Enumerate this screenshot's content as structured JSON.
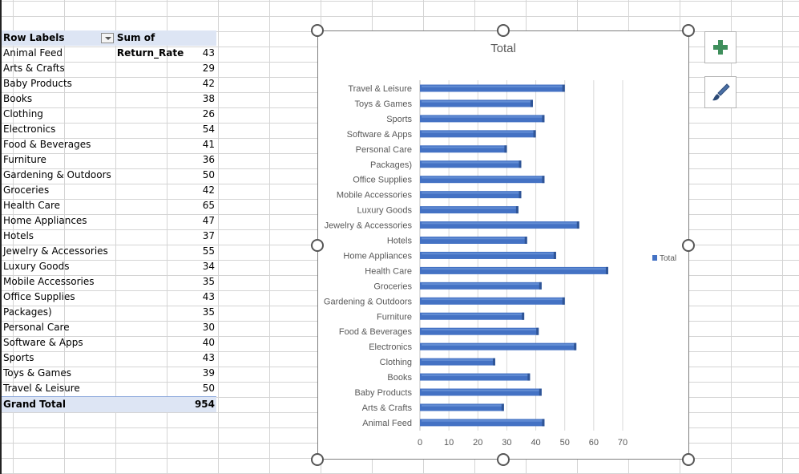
{
  "pivot": {
    "header": {
      "row_labels": "Row Labels",
      "value_field": "Sum of Return_Rate"
    },
    "rows": [
      {
        "label": "Animal Feed",
        "value": "43"
      },
      {
        "label": "Arts & Crafts",
        "value": "29"
      },
      {
        "label": "Baby Products",
        "value": "42"
      },
      {
        "label": "Books",
        "value": "38"
      },
      {
        "label": "Clothing",
        "value": "26"
      },
      {
        "label": "Electronics",
        "value": "54"
      },
      {
        "label": "Food & Beverages",
        "value": "41"
      },
      {
        "label": "Furniture",
        "value": "36"
      },
      {
        "label": "Gardening & Outdoors",
        "value": "50"
      },
      {
        "label": "Groceries",
        "value": "42"
      },
      {
        "label": "Health Care",
        "value": "65"
      },
      {
        "label": "Home Appliances",
        "value": "47"
      },
      {
        "label": "Hotels",
        "value": "37"
      },
      {
        "label": "Jewelry & Accessories",
        "value": "55"
      },
      {
        "label": "Luxury Goods",
        "value": "34"
      },
      {
        "label": "Mobile Accessories",
        "value": "35"
      },
      {
        "label": "Office Supplies",
        "value": "43"
      },
      {
        "label": "Packages)",
        "value": "35"
      },
      {
        "label": "Personal Care",
        "value": "30"
      },
      {
        "label": "Software & Apps",
        "value": "40"
      },
      {
        "label": "Sports",
        "value": "43"
      },
      {
        "label": "Toys & Games",
        "value": "39"
      },
      {
        "label": "Travel & Leisure",
        "value": "50"
      }
    ],
    "grand_total": {
      "label": "Grand Total",
      "value": "954"
    }
  },
  "chart_buttons": {
    "add_element": "plus-icon",
    "styles": "paintbrush-icon",
    "accent": "#3f8f5c"
  },
  "chart_data": {
    "type": "bar",
    "orientation": "horizontal",
    "title": "Total",
    "categories": [
      "Animal Feed",
      "Arts & Crafts",
      "Baby Products",
      "Books",
      "Clothing",
      "Electronics",
      "Food & Beverages",
      "Furniture",
      "Gardening & Outdoors",
      "Groceries",
      "Health Care",
      "Home Appliances",
      "Hotels",
      "Jewelry & Accessories",
      "Luxury Goods",
      "Mobile Accessories",
      "Office Supplies",
      "Packages)",
      "Personal Care",
      "Software & Apps",
      "Sports",
      "Toys & Games",
      "Travel & Leisure"
    ],
    "series": [
      {
        "name": "Total",
        "values": [
          43,
          29,
          42,
          38,
          26,
          54,
          41,
          36,
          50,
          42,
          65,
          47,
          37,
          55,
          34,
          35,
          43,
          35,
          30,
          40,
          43,
          39,
          50
        ]
      }
    ],
    "xlim": [
      0,
      70
    ],
    "xticks": [
      0,
      10,
      20,
      30,
      40,
      50,
      60,
      70
    ],
    "grid": true,
    "legend": "right",
    "bar_color": "#4472c4"
  }
}
